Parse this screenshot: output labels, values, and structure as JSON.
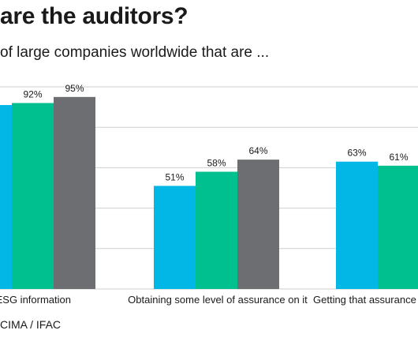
{
  "title": "are the auditors?",
  "subtitle": "of large companies worldwide that are ...",
  "source": "CIMA / IFAC",
  "colors": {
    "series1": "#00b7e6",
    "series2": "#00c08f",
    "series3": "#6d6e71",
    "grid": "#cfcfcf",
    "text": "#1a1a1a"
  },
  "chart_data": {
    "type": "bar",
    "title": "are the auditors?",
    "subtitle": "of large companies worldwide that are ...",
    "categories": [
      "orting ESG information",
      "Obtaining some level of assurance on it",
      "Getting that assurance fr"
    ],
    "series": [
      {
        "values": [
          91,
          51,
          63
        ],
        "labels": [
          "%",
          "51%",
          "63%"
        ]
      },
      {
        "values": [
          92,
          58,
          61
        ],
        "labels": [
          "92%",
          "58%",
          "61%"
        ]
      },
      {
        "values": [
          95,
          64,
          null
        ],
        "labels": [
          "95%",
          "64%",
          ""
        ]
      }
    ],
    "ylim": [
      0,
      100
    ],
    "grid": true,
    "legend": "none"
  }
}
